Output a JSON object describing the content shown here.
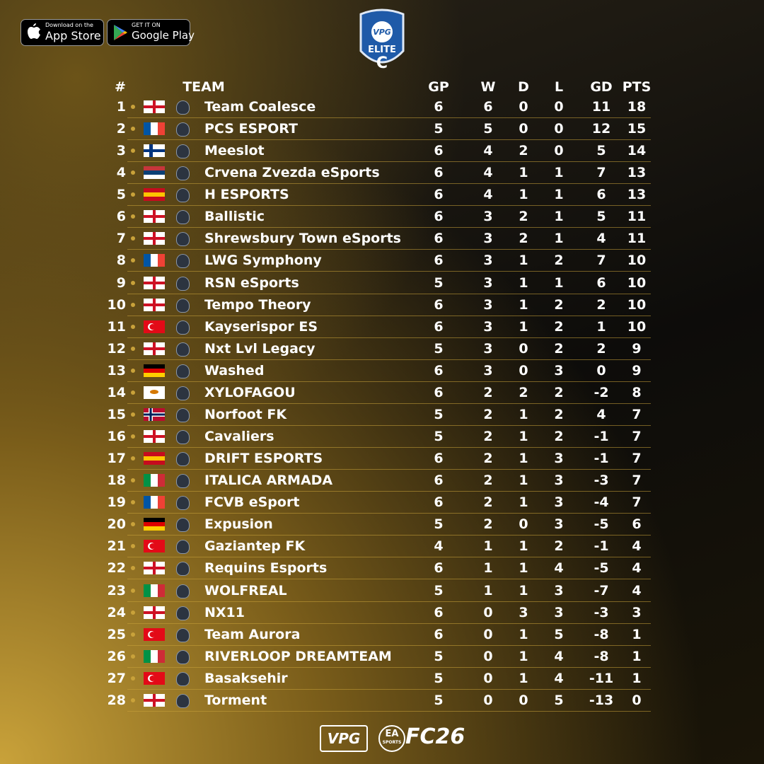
{
  "header": {
    "app_store_small": "Download on the",
    "app_store": "App Store",
    "google_small": "GET IT ON",
    "google": "Google Play",
    "logo_brand": "VPG",
    "logo_tier": "ELITE",
    "logo_letter": "C"
  },
  "table": {
    "columns": [
      "#",
      "TEAM",
      "GP",
      "W",
      "D",
      "L",
      "GD",
      "PTS"
    ],
    "rows": [
      [
        1,
        "Team Coalesce",
        6,
        6,
        0,
        0,
        11,
        18
      ],
      [
        2,
        "PCS ESPORT",
        5,
        5,
        0,
        0,
        12,
        15
      ],
      [
        3,
        "Meeslot",
        6,
        4,
        2,
        0,
        5,
        14
      ],
      [
        4,
        "Crvena Zvezda eSports",
        6,
        4,
        1,
        1,
        7,
        13
      ],
      [
        5,
        "H ESPORTS",
        6,
        4,
        1,
        1,
        6,
        13
      ],
      [
        6,
        "Ballistic",
        6,
        3,
        2,
        1,
        5,
        11
      ],
      [
        7,
        "Shrewsbury Town eSports",
        6,
        3,
        2,
        1,
        4,
        11
      ],
      [
        8,
        "LWG Symphony",
        6,
        3,
        1,
        2,
        7,
        10
      ],
      [
        9,
        "RSN eSports",
        5,
        3,
        1,
        1,
        6,
        10
      ],
      [
        10,
        "Tempo Theory",
        6,
        3,
        1,
        2,
        2,
        10
      ],
      [
        11,
        "Kayserispor ES",
        6,
        3,
        1,
        2,
        1,
        10
      ],
      [
        12,
        "Nxt Lvl Legacy",
        5,
        3,
        0,
        2,
        2,
        9
      ],
      [
        13,
        "Washed",
        6,
        3,
        0,
        3,
        0,
        9
      ],
      [
        14,
        "XYLOFAGOU",
        6,
        2,
        2,
        2,
        -2,
        8
      ],
      [
        15,
        "Norfoot FK",
        5,
        2,
        1,
        2,
        4,
        7
      ],
      [
        16,
        "Cavaliers",
        5,
        2,
        1,
        2,
        -1,
        7
      ],
      [
        17,
        "DRIFT ESPORTS",
        6,
        2,
        1,
        3,
        -1,
        7
      ],
      [
        18,
        "ITALICA ARMADA",
        6,
        2,
        1,
        3,
        -3,
        7
      ],
      [
        19,
        "FCVB eSport",
        6,
        2,
        1,
        3,
        -4,
        7
      ],
      [
        20,
        "Expusion",
        5,
        2,
        0,
        3,
        -5,
        6
      ],
      [
        21,
        "Gaziantep FK",
        4,
        1,
        1,
        2,
        -1,
        4
      ],
      [
        22,
        "Requins Esports",
        6,
        1,
        1,
        4,
        -5,
        4
      ],
      [
        23,
        "WOLFREAL",
        5,
        1,
        1,
        3,
        -7,
        4
      ],
      [
        24,
        "NX11",
        6,
        0,
        3,
        3,
        -3,
        3
      ],
      [
        25,
        "Team Aurora",
        6,
        0,
        1,
        5,
        -8,
        1
      ],
      [
        26,
        "RIVERLOOP DREAMTEAM",
        5,
        0,
        1,
        4,
        -8,
        1
      ],
      [
        27,
        "Basaksehir",
        5,
        0,
        1,
        4,
        -11,
        1
      ],
      [
        28,
        "Torment",
        5,
        0,
        0,
        5,
        -13,
        0
      ]
    ]
  },
  "footer": {
    "brand": "VPG",
    "ea": "EA",
    "ea_small": "SPORTS",
    "game": "FC26"
  }
}
